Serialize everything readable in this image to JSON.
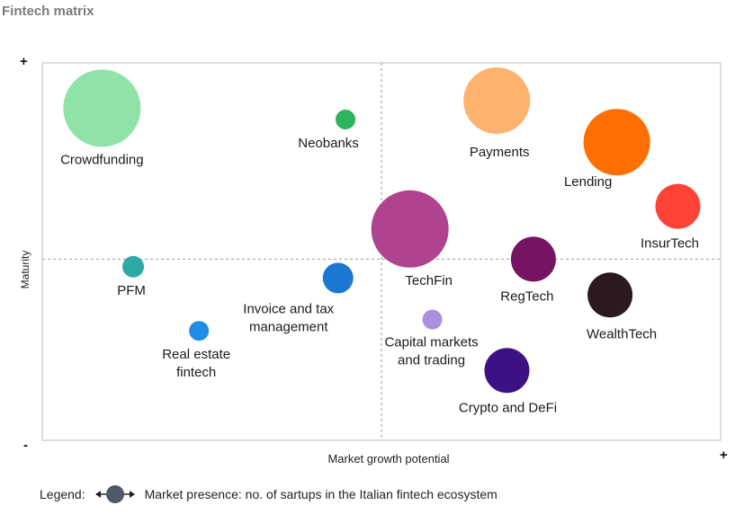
{
  "chart_data": {
    "type": "scatter",
    "subtype": "bubble",
    "title": "Fintech matrix",
    "xlabel": "Market growth potential",
    "ylabel": "Maturity",
    "x_low_marker": "-",
    "x_high_marker": "+",
    "y_low_marker": "-",
    "y_high_marker": "+",
    "xlim": [
      0,
      100
    ],
    "ylim": [
      0,
      100
    ],
    "quadrant_lines": {
      "x": 50,
      "y": 48
    },
    "grid": false,
    "points": [
      {
        "label": "Crowdfunding",
        "x": 8.8,
        "y": 88.0,
        "size": 43,
        "color": "#8fe3a8"
      },
      {
        "label": "Neobanks",
        "x": 44.7,
        "y": 85.0,
        "size": 11,
        "color": "#2db55d"
      },
      {
        "label": "Payments",
        "x": 67.0,
        "y": 90.0,
        "size": 37,
        "color": "#fdb26e"
      },
      {
        "label": "Lending",
        "x": 84.7,
        "y": 79.0,
        "size": 37,
        "color": "#ff6e00"
      },
      {
        "label": "InsurTech",
        "x": 93.7,
        "y": 62.0,
        "size": 25,
        "color": "#ff4437"
      },
      {
        "label": "TechFin",
        "x": 54.2,
        "y": 56.0,
        "size": 43,
        "color": "#b0438f"
      },
      {
        "label": "PFM",
        "x": 13.4,
        "y": 46.0,
        "size": 12,
        "color": "#2eaaa4"
      },
      {
        "label": "Invoice and tax management",
        "x": 43.6,
        "y": 43.0,
        "size": 17,
        "color": "#1b77d2"
      },
      {
        "label": "RegTech",
        "x": 72.4,
        "y": 48.0,
        "size": 25,
        "color": "#761463"
      },
      {
        "label": "WealthTech",
        "x": 83.7,
        "y": 38.5,
        "size": 25,
        "color": "#2b1a1d"
      },
      {
        "label": "Capital markets and trading",
        "x": 57.5,
        "y": 32.0,
        "size": 11,
        "color": "#ab8fe0"
      },
      {
        "label": "Real estate fintech",
        "x": 23.1,
        "y": 29.0,
        "size": 11,
        "color": "#1f8de6"
      },
      {
        "label": "Crypto and DeFi",
        "x": 68.5,
        "y": 18.5,
        "size": 25,
        "color": "#3c1183"
      }
    ]
  },
  "legend": {
    "label": "Legend:",
    "text": "Market presence: no. of sartups in the Italian fintech ecosystem",
    "icon_color": "#4f5a66"
  }
}
